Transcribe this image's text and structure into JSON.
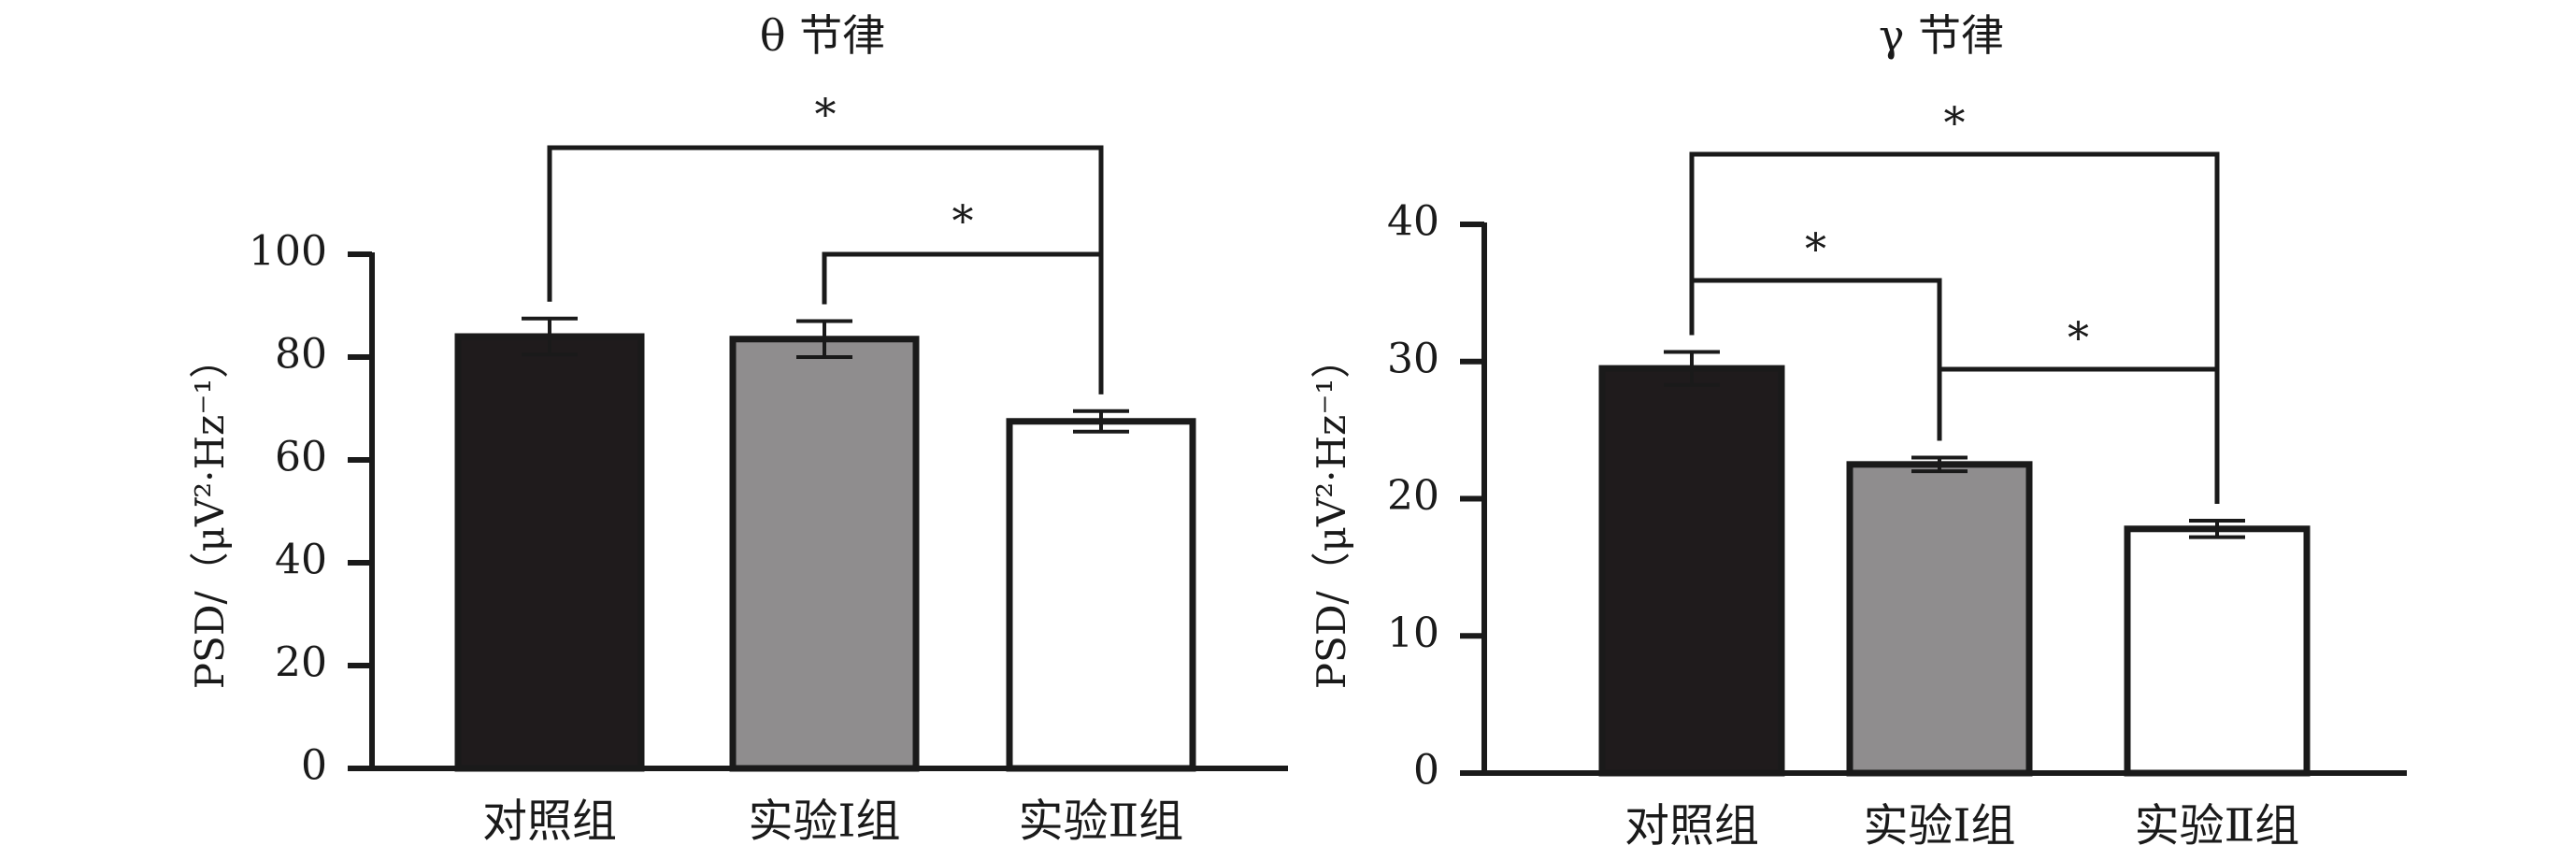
{
  "figure": {
    "ylabel": "PSD/（μV²·Hz⁻¹）"
  },
  "chart_data": [
    {
      "type": "bar",
      "title": "θ 节律",
      "xlabel": "",
      "ylabel": "PSD/（μV²·Hz⁻¹）",
      "ylim": [
        0,
        100
      ],
      "yticks": [
        0,
        20,
        40,
        60,
        80,
        100
      ],
      "grid": false,
      "categories": [
        "对照组",
        "实验Ⅰ组",
        "实验Ⅱ组"
      ],
      "values": [
        84,
        83.5,
        67.5
      ],
      "errors": [
        3.5,
        3.5,
        2
      ],
      "bar_colors": [
        "#1f1b1c",
        "#8f8d8e",
        "#ffffff"
      ],
      "significance": [
        {
          "from": 0,
          "to": 2,
          "label": "*"
        },
        {
          "from": 1,
          "to": 2,
          "label": "*"
        }
      ]
    },
    {
      "type": "bar",
      "title": "γ 节律",
      "xlabel": "",
      "ylabel": "PSD/（μV²·Hz⁻¹）",
      "ylim": [
        0,
        40
      ],
      "yticks": [
        0,
        10,
        20,
        30,
        40
      ],
      "grid": false,
      "categories": [
        "对照组",
        "实验Ⅰ组",
        "实验Ⅱ组"
      ],
      "values": [
        29.5,
        22.5,
        17.8
      ],
      "errors": [
        1.2,
        0.5,
        0.6
      ],
      "bar_colors": [
        "#1f1b1c",
        "#8f8d8e",
        "#ffffff"
      ],
      "significance": [
        {
          "from": 0,
          "to": 2,
          "label": "*"
        },
        {
          "from": 0,
          "to": 1,
          "label": "*"
        },
        {
          "from": 1,
          "to": 2,
          "label": "*"
        }
      ]
    }
  ]
}
